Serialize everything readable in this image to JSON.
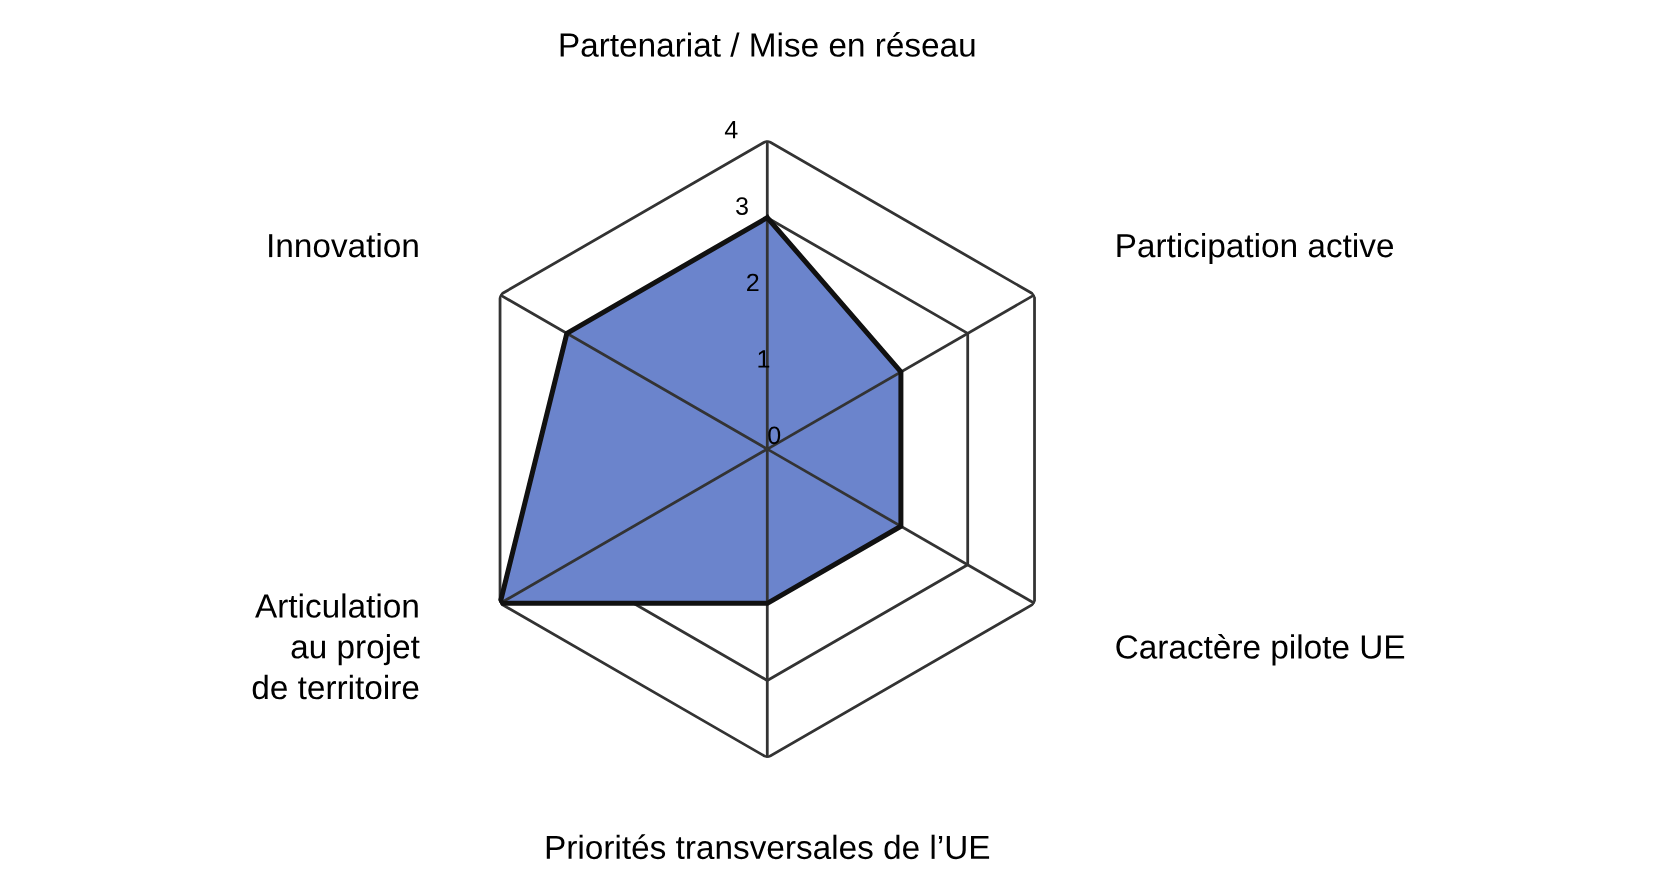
{
  "chart_data": {
    "type": "radar",
    "categories": [
      "Partenariat / Mise en réseau",
      "Participation active",
      "Caractère pilote UE",
      "Priorités transversales de l’UE",
      "Articulation\nau projet\nde territoire",
      "Innovation"
    ],
    "series": [
      {
        "color": "#6b84cc",
        "values": [
          3,
          2,
          2,
          2,
          4,
          3
        ]
      }
    ],
    "ylim": [
      0,
      4
    ],
    "yticks": [
      0,
      1,
      2,
      3,
      4
    ],
    "grid": true
  }
}
